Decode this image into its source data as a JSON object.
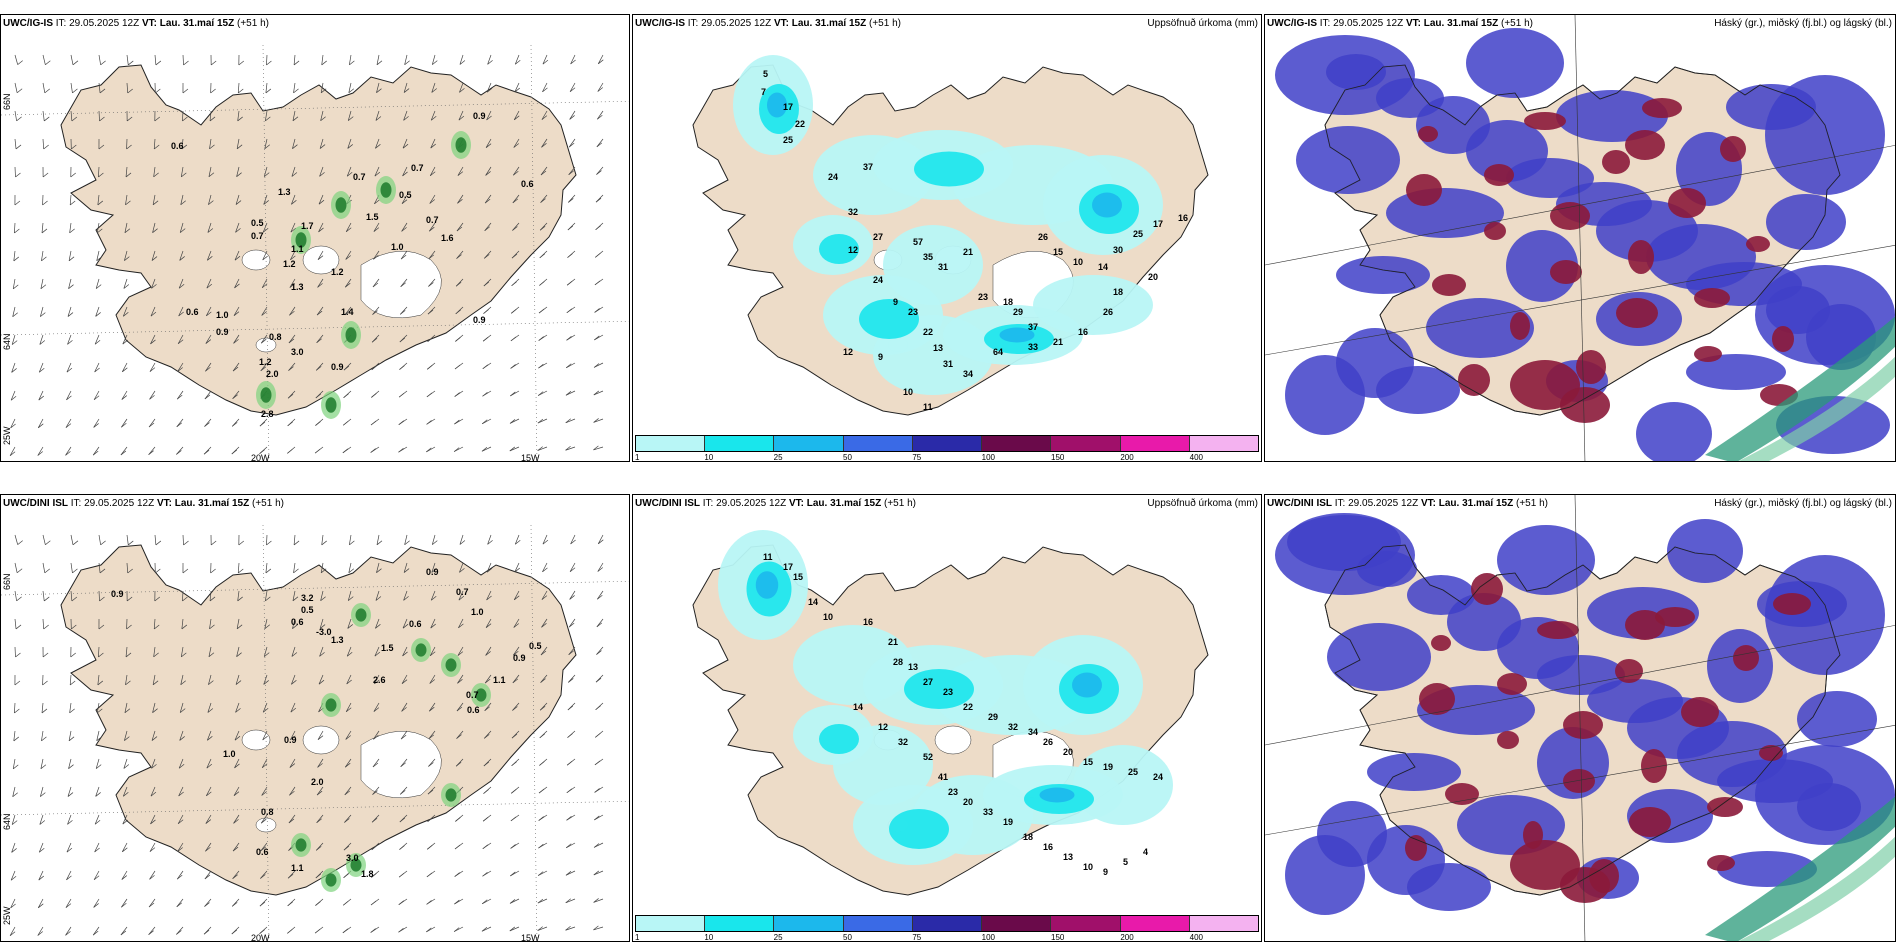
{
  "panels": [
    {
      "model": "UWC/IG-IS",
      "it_label": "IT:",
      "it": "29.05.2025 12Z",
      "vt_label": "VT: Lau. 31.maí 15Z",
      "lead": "(+51 h)",
      "right": ""
    },
    {
      "model": "UWC/IG-IS",
      "it_label": "IT:",
      "it": "29.05.2025 12Z",
      "vt_label": "VT: Lau. 31.maí 15Z",
      "lead": "(+51 h)",
      "right": "Uppsöfnuð úrkoma (mm)"
    },
    {
      "model": "UWC/IG-IS",
      "it_label": "IT:",
      "it": "29.05.2025 12Z",
      "vt_label": "VT: Lau. 31.maí 15Z",
      "lead": "(+51 h)",
      "right": "Háský (gr.), miðský (fj.bl.) og lágský (bl.)"
    },
    {
      "model": "UWC/DINI ISL",
      "it_label": "IT:",
      "it": "29.05.2025 12Z",
      "vt_label": "VT: Lau. 31.maí 15Z",
      "lead": "(+51 h)",
      "right": ""
    },
    {
      "model": "UWC/DINI ISL",
      "it_label": "IT:",
      "it": "29.05.2025 12Z",
      "vt_label": "VT: Lau. 31.maí 15Z",
      "lead": "(+51 h)",
      "right": "Uppsöfnuð úrkoma (mm)"
    },
    {
      "model": "UWC/DINI ISL",
      "it_label": "IT:",
      "it": "29.05.2025 12Z",
      "vt_label": "VT: Lau. 31.maí 15Z",
      "lead": "(+51 h)",
      "right": "Háský (gr.), miðský (fj.bl.) og lágský (bl.)"
    }
  ],
  "axis_labels": {
    "lon_20w": "20W",
    "lon_15w": "15W",
    "lat_66n": "66N",
    "lat_64n": "64N",
    "lon_25w": "25W"
  },
  "colorbar": {
    "ticks": [
      "1",
      "10",
      "25",
      "50",
      "75",
      "100",
      "150",
      "200",
      "400"
    ],
    "colors": [
      "#b8f6f6",
      "#19e6ec",
      "#1cb8ec",
      "#3a6ae6",
      "#2a2aa8",
      "#6a0a4a",
      "#a0106a",
      "#e81aaa",
      "#f4b2f0"
    ]
  },
  "temp_values_ig": [
    "0.6",
    "0.9",
    "0.7",
    "0.7",
    "0.5",
    "1.3",
    "0.5",
    "0.7",
    "1.7",
    "1.5",
    "0.7",
    "1.1",
    "1.2",
    "1.3",
    "0.6",
    "1.0",
    "0.9",
    "0.8",
    "3.0",
    "1.2",
    "2.0",
    "2.8",
    "0.6",
    "0.9",
    "1.2",
    "0.9",
    "1.4",
    "1.0",
    "1.6"
  ],
  "temp_values_dini": [
    "0.9",
    "0.9",
    "0.7",
    "3.2",
    "0.5",
    "1.0",
    "0.6",
    "-3.0",
    "1.3",
    "1.5",
    "0.6",
    "2.6",
    "1.1",
    "0.5",
    "0.9",
    "0.7",
    "0.6",
    "0.9",
    "1.0",
    "2.0",
    "0.8",
    "0.6",
    "3.0",
    "1.1",
    "1.8"
  ],
  "precip_values_ig": [
    "5",
    "7",
    "17",
    "22",
    "25",
    "24",
    "37",
    "32",
    "27",
    "57",
    "35",
    "31",
    "21",
    "23",
    "18",
    "29",
    "37",
    "26",
    "15",
    "10",
    "14",
    "30",
    "25",
    "17",
    "16",
    "12",
    "24",
    "9",
    "23",
    "22",
    "13",
    "31",
    "34",
    "64",
    "33",
    "21",
    "16",
    "26",
    "18",
    "20",
    "12",
    "9",
    "10",
    "11"
  ],
  "precip_values_dini": [
    "11",
    "17",
    "15",
    "14",
    "10",
    "16",
    "21",
    "28",
    "13",
    "27",
    "23",
    "22",
    "29",
    "32",
    "34",
    "26",
    "20",
    "15",
    "19",
    "25",
    "24",
    "14",
    "12",
    "32",
    "52",
    "41",
    "23",
    "20",
    "33",
    "19",
    "18",
    "16",
    "13",
    "10",
    "9",
    "5",
    "4"
  ],
  "colors": {
    "land": "#eddcc8",
    "sea": "#ffffff",
    "cloud_low": "#3f3fc8",
    "cloud_mid": "#8b1a3a",
    "cloud_high": "#2a9a7a",
    "green": "#1c7a2c"
  }
}
